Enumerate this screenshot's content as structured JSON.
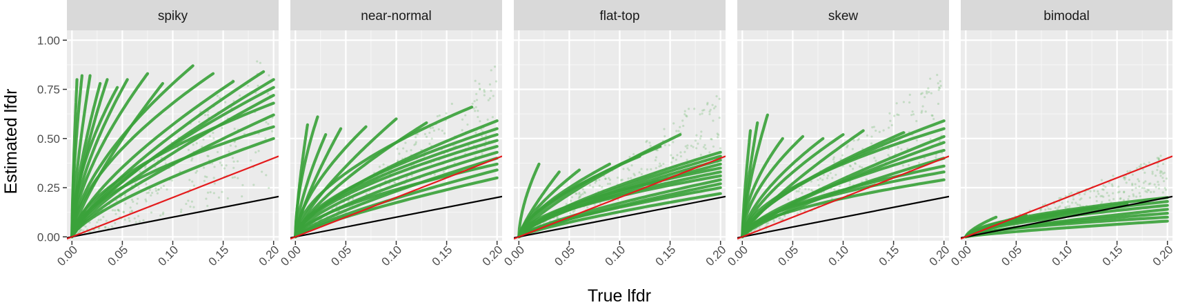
{
  "chart_data": {
    "type": "scatter",
    "facet_layout": "1 row, 5 columns, shared y axis",
    "xlabel": "True lfdr",
    "ylabel": "Estimated lfdr",
    "xlim": [
      -0.005,
      0.205
    ],
    "ylim": [
      -0.02,
      1.05
    ],
    "x_ticks": [
      0.0,
      0.05,
      0.1,
      0.15,
      0.2
    ],
    "x_tick_labels": [
      "0.00",
      "0.05",
      "0.10",
      "0.15",
      "0.20"
    ],
    "y_ticks": [
      0.0,
      0.25,
      0.5,
      0.75,
      1.0
    ],
    "y_tick_labels": [
      "0.00",
      "0.25",
      "0.50",
      "0.75",
      "1.00"
    ],
    "grid": true,
    "point_color": "#3ba23b",
    "reference_lines": [
      {
        "slope": 1,
        "intercept": 0,
        "color": "#000000"
      },
      {
        "slope": 2,
        "intercept": 0,
        "color": "#e41a1c"
      }
    ],
    "panels": [
      {
        "label": "spiky",
        "curves": [
          {
            "end": [
              0.005,
              0.8
            ]
          },
          {
            "end": [
              0.01,
              0.82
            ]
          },
          {
            "end": [
              0.018,
              0.82
            ]
          },
          {
            "end": [
              0.028,
              0.78
            ]
          },
          {
            "end": [
              0.035,
              0.8
            ]
          },
          {
            "end": [
              0.045,
              0.76
            ]
          },
          {
            "end": [
              0.055,
              0.8
            ]
          },
          {
            "end": [
              0.075,
              0.83
            ]
          },
          {
            "end": [
              0.09,
              0.78
            ]
          },
          {
            "end": [
              0.12,
              0.87
            ]
          },
          {
            "end": [
              0.14,
              0.83
            ]
          },
          {
            "end": [
              0.16,
              0.79
            ]
          },
          {
            "end": [
              0.19,
              0.84
            ]
          },
          {
            "end": [
              0.2,
              0.8
            ]
          },
          {
            "end": [
              0.2,
              0.76
            ]
          },
          {
            "end": [
              0.2,
              0.72
            ]
          },
          {
            "end": [
              0.2,
              0.68
            ]
          },
          {
            "end": [
              0.2,
              0.62
            ]
          },
          {
            "end": [
              0.2,
              0.56
            ]
          },
          {
            "end": [
              0.2,
              0.5
            ]
          }
        ],
        "scatter_band": [
          0.05,
          0.4
        ]
      },
      {
        "label": "near-normal",
        "curves": [
          {
            "end": [
              0.012,
              0.57
            ]
          },
          {
            "end": [
              0.022,
              0.61
            ]
          },
          {
            "end": [
              0.03,
              0.52
            ]
          },
          {
            "end": [
              0.045,
              0.55
            ]
          },
          {
            "end": [
              0.07,
              0.56
            ]
          },
          {
            "end": [
              0.1,
              0.6
            ]
          },
          {
            "end": [
              0.13,
              0.58
            ]
          },
          {
            "end": [
              0.175,
              0.66
            ]
          },
          {
            "end": [
              0.2,
              0.59
            ]
          },
          {
            "end": [
              0.2,
              0.55
            ]
          },
          {
            "end": [
              0.2,
              0.52
            ]
          },
          {
            "end": [
              0.2,
              0.49
            ]
          },
          {
            "end": [
              0.2,
              0.46
            ]
          },
          {
            "end": [
              0.2,
              0.43
            ]
          },
          {
            "end": [
              0.2,
              0.4
            ]
          },
          {
            "end": [
              0.2,
              0.37
            ]
          },
          {
            "end": [
              0.2,
              0.34
            ]
          },
          {
            "end": [
              0.2,
              0.3
            ]
          }
        ],
        "scatter_band": [
          0.15,
          0.35
        ]
      },
      {
        "label": "flat-top",
        "curves": [
          {
            "end": [
              0.02,
              0.37
            ]
          },
          {
            "end": [
              0.04,
              0.33
            ]
          },
          {
            "end": [
              0.06,
              0.34
            ]
          },
          {
            "end": [
              0.09,
              0.37
            ]
          },
          {
            "end": [
              0.12,
              0.41
            ]
          },
          {
            "end": [
              0.14,
              0.46
            ]
          },
          {
            "end": [
              0.16,
              0.52
            ]
          },
          {
            "end": [
              0.2,
              0.43
            ]
          },
          {
            "end": [
              0.2,
              0.41
            ]
          },
          {
            "end": [
              0.2,
              0.39
            ]
          },
          {
            "end": [
              0.2,
              0.37
            ]
          },
          {
            "end": [
              0.2,
              0.35
            ]
          },
          {
            "end": [
              0.2,
              0.33
            ]
          },
          {
            "end": [
              0.2,
              0.31
            ]
          },
          {
            "end": [
              0.2,
              0.29
            ]
          },
          {
            "end": [
              0.2,
              0.27
            ]
          },
          {
            "end": [
              0.2,
              0.25
            ]
          },
          {
            "end": [
              0.2,
              0.22
            ]
          }
        ],
        "scatter_band": [
          0.12,
          0.3
        ]
      },
      {
        "label": "skew",
        "curves": [
          {
            "end": [
              0.008,
              0.54
            ]
          },
          {
            "end": [
              0.015,
              0.58
            ]
          },
          {
            "end": [
              0.025,
              0.62
            ]
          },
          {
            "end": [
              0.04,
              0.5
            ]
          },
          {
            "end": [
              0.06,
              0.51
            ]
          },
          {
            "end": [
              0.08,
              0.5
            ]
          },
          {
            "end": [
              0.1,
              0.52
            ]
          },
          {
            "end": [
              0.12,
              0.54
            ]
          },
          {
            "end": [
              0.16,
              0.53
            ]
          },
          {
            "end": [
              0.2,
              0.59
            ]
          },
          {
            "end": [
              0.2,
              0.55
            ]
          },
          {
            "end": [
              0.2,
              0.51
            ]
          },
          {
            "end": [
              0.2,
              0.48
            ]
          },
          {
            "end": [
              0.2,
              0.44
            ]
          },
          {
            "end": [
              0.2,
              0.4
            ]
          },
          {
            "end": [
              0.2,
              0.36
            ]
          },
          {
            "end": [
              0.2,
              0.33
            ]
          },
          {
            "end": [
              0.2,
              0.29
            ]
          }
        ],
        "scatter_band": [
          0.12,
          0.35
        ]
      },
      {
        "label": "bimodal",
        "curves": [
          {
            "end": [
              0.03,
              0.1
            ]
          },
          {
            "end": [
              0.06,
              0.11
            ]
          },
          {
            "end": [
              0.09,
              0.12
            ]
          },
          {
            "end": [
              0.11,
              0.13
            ]
          },
          {
            "end": [
              0.13,
              0.15
            ]
          },
          {
            "end": [
              0.16,
              0.17
            ]
          },
          {
            "end": [
              0.2,
              0.2
            ]
          },
          {
            "end": [
              0.2,
              0.18
            ]
          },
          {
            "end": [
              0.2,
              0.16
            ]
          },
          {
            "end": [
              0.2,
              0.14
            ]
          },
          {
            "end": [
              0.2,
              0.12
            ]
          },
          {
            "end": [
              0.2,
              0.1
            ]
          },
          {
            "end": [
              0.2,
              0.08
            ]
          }
        ],
        "scatter_band": [
          0.05,
          0.14
        ]
      }
    ]
  }
}
